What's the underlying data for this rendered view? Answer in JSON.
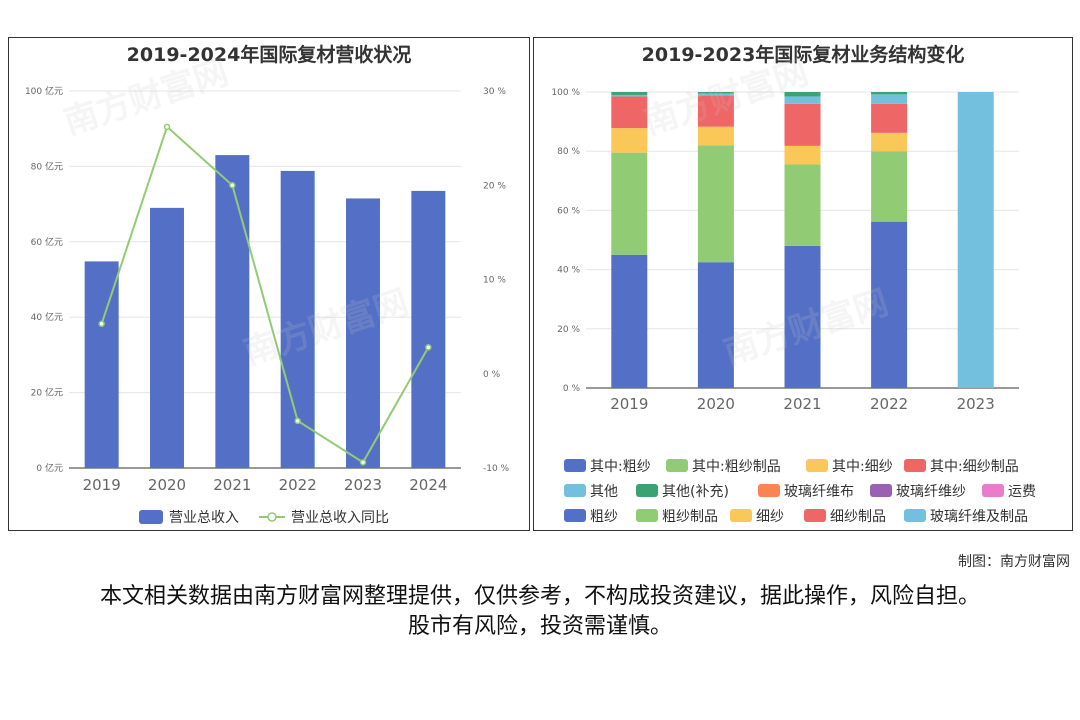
{
  "credit": "制图：南方财富网",
  "disclaimer": "本文相关数据由南方财富网整理提供，仅供参考，不构成投资建议，据此操作，风险自担。股市有风险，投资需谨慎。",
  "watermark_text": "南方财富网",
  "chart_data": [
    {
      "type": "bar",
      "title": "2019-2024年国际复材营收状况",
      "categories": [
        "2019",
        "2020",
        "2021",
        "2022",
        "2023",
        "2024"
      ],
      "series": [
        {
          "name": "营业总收入",
          "type": "bar",
          "axis": "left",
          "color": "#5470c6",
          "values": [
            54.8,
            69.0,
            83.0,
            78.8,
            71.5,
            73.5
          ]
        },
        {
          "name": "营业总收入同比",
          "type": "line",
          "axis": "right",
          "color": "#91cc75",
          "values": [
            5.3,
            26.2,
            20.0,
            -5.0,
            -9.4,
            2.8
          ]
        }
      ],
      "y_left": {
        "min": 0,
        "max": 100,
        "step": 20,
        "unit": "亿元"
      },
      "y_right": {
        "min": -10,
        "max": 30,
        "step": 10,
        "unit": "%"
      },
      "legend_position": "bottom"
    },
    {
      "type": "bar",
      "stacked": true,
      "title": "2019-2023年国际复材业务结构变化",
      "categories": [
        "2019",
        "2020",
        "2021",
        "2022",
        "2023"
      ],
      "y": {
        "min": 0,
        "max": 100,
        "step": 20,
        "unit": "%"
      },
      "series": [
        {
          "name": "其中:粗纱",
          "color": "#5470c6",
          "values": [
            45,
            42.5,
            48,
            56.2,
            0
          ]
        },
        {
          "name": "其中:粗纱制品",
          "color": "#91cc75",
          "values": [
            34.5,
            39.5,
            27.5,
            23.8,
            0
          ]
        },
        {
          "name": "其中:细纱",
          "color": "#fac858",
          "values": [
            8.3,
            6.3,
            6.3,
            6.2,
            0
          ]
        },
        {
          "name": "其中:细纱制品",
          "color": "#ee6666",
          "values": [
            10.7,
            10.5,
            14.2,
            9.8,
            0
          ]
        },
        {
          "name": "其他",
          "color": "#73c0de",
          "values": [
            0.5,
            0.7,
            2.5,
            3.2,
            0
          ]
        },
        {
          "name": "其他(补充)",
          "color": "#3ba272",
          "values": [
            1.0,
            0.5,
            1.5,
            0.8,
            0
          ]
        },
        {
          "name": "玻璃纤维布",
          "color": "#fc8452",
          "values": [
            0,
            0,
            0,
            0,
            0
          ]
        },
        {
          "name": "玻璃纤维纱",
          "color": "#9a60b4",
          "values": [
            0,
            0,
            0,
            0,
            0
          ]
        },
        {
          "name": "运费",
          "color": "#ea7ccc",
          "values": [
            0,
            0,
            0,
            0,
            0
          ]
        },
        {
          "name": "粗纱",
          "color": "#5470c6",
          "values": [
            0,
            0,
            0,
            0,
            0
          ]
        },
        {
          "name": "粗纱制品",
          "color": "#91cc75",
          "values": [
            0,
            0,
            0,
            0,
            0
          ]
        },
        {
          "name": "细纱",
          "color": "#fac858",
          "values": [
            0,
            0,
            0,
            0,
            0
          ]
        },
        {
          "name": "细纱制品",
          "color": "#ee6666",
          "values": [
            0,
            0,
            0,
            0,
            0
          ]
        },
        {
          "name": "玻璃纤维及制品",
          "color": "#73c0de",
          "values": [
            0,
            0,
            0,
            0,
            100
          ]
        }
      ],
      "legend_position": "bottom"
    }
  ]
}
